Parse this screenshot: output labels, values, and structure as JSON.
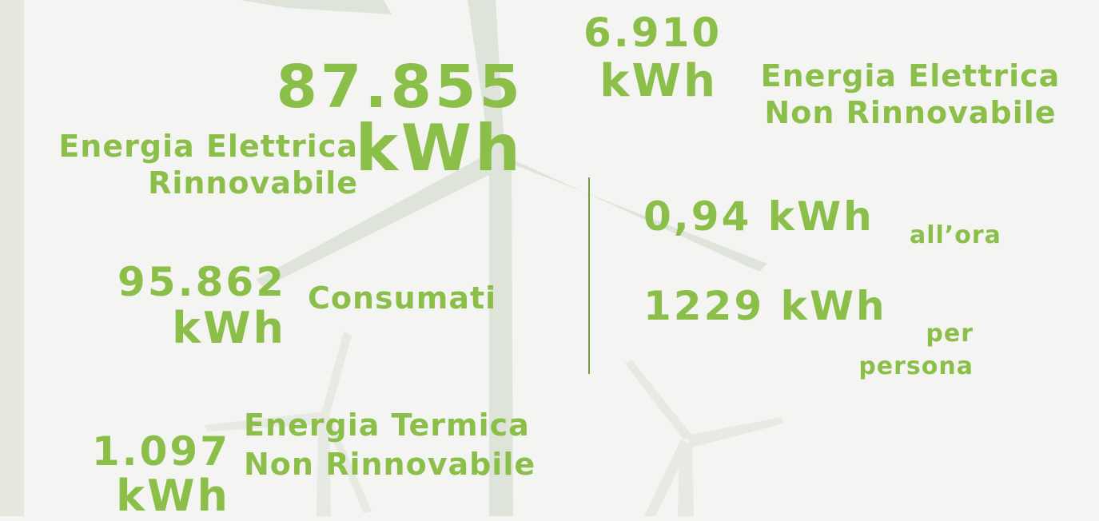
{
  "stats": [
    {
      "value": "87.855",
      "unit": "kWh",
      "label": [
        "Energia Elettrica",
        "Rinnovabile"
      ]
    },
    {
      "value": "6.910",
      "unit": "kWh",
      "label": [
        "Energia Elettrica",
        "Non Rinnovabile"
      ]
    },
    {
      "value": "95.862",
      "unit": "kWh",
      "label": [
        "Consumati"
      ]
    },
    {
      "value": "1.097",
      "unit": "kWh",
      "label": [
        "Energia Termica",
        "Non Rinnovabile"
      ]
    }
  ],
  "per_unit": [
    {
      "amount": "0,94 kWh",
      "label": [
        "all’ora"
      ]
    },
    {
      "amount": "1229 kWh",
      "label": [
        "per",
        "persona"
      ]
    }
  ]
}
